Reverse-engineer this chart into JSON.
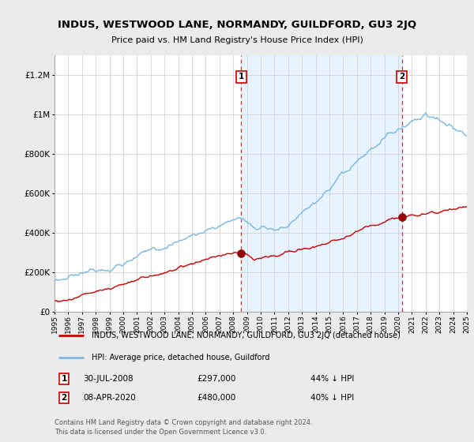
{
  "title": "INDUS, WESTWOOD LANE, NORMANDY, GUILDFORD, GU3 2JQ",
  "subtitle": "Price paid vs. HM Land Registry's House Price Index (HPI)",
  "bg_color": "#ebebeb",
  "plot_bg_color": "#ffffff",
  "shade_color": "#ddeeff",
  "ylim": [
    0,
    1300000
  ],
  "yticks": [
    0,
    200000,
    400000,
    600000,
    800000,
    1000000,
    1200000
  ],
  "ytick_labels": [
    "£0",
    "£200K",
    "£400K",
    "£600K",
    "£800K",
    "£1M",
    "£1.2M"
  ],
  "x_start_year": 1995,
  "x_end_year": 2025,
  "hpi_color": "#7ab8e0",
  "price_color": "#cc0000",
  "sale1_year": 2008.58,
  "sale1_price": 297000,
  "sale2_year": 2020.27,
  "sale2_price": 480000,
  "legend_label_red": "INDUS, WESTWOOD LANE, NORMANDY, GUILDFORD, GU3 2JQ (detached house)",
  "legend_label_blue": "HPI: Average price, detached house, Guildford",
  "annotation1_date": "30-JUL-2008",
  "annotation1_price": "£297,000",
  "annotation1_pct": "44% ↓ HPI",
  "annotation2_date": "08-APR-2020",
  "annotation2_price": "£480,000",
  "annotation2_pct": "40% ↓ HPI",
  "footer": "Contains HM Land Registry data © Crown copyright and database right 2024.\nThis data is licensed under the Open Government Licence v3.0."
}
